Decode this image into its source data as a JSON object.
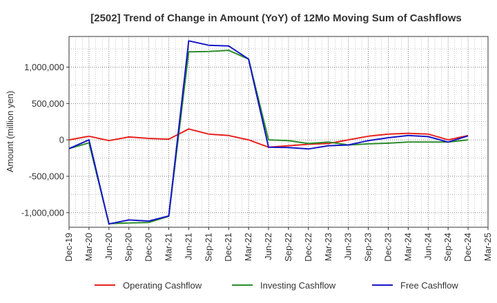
{
  "chart_data": {
    "type": "line",
    "title": "[2502]  Trend of Change in Amount (YoY) of 12Mo Moving Sum of Cashflows",
    "xlabel": "",
    "ylabel": "Amount (million yen)",
    "ylim": [
      -1200000,
      1420000
    ],
    "y_ticks": [
      -1000000,
      -500000,
      0,
      500000,
      1000000
    ],
    "y_tick_labels": [
      "-1,000,000",
      "-500,000",
      "0",
      "500,000",
      "1,000,000"
    ],
    "x_tick_labels": [
      "Dec-19",
      "Mar-20",
      "Jun-20",
      "Sep-20",
      "Dec-20",
      "Mar-21",
      "Jun-21",
      "Sep-21",
      "Dec-21",
      "Mar-22",
      "Jun-22",
      "Sep-22",
      "Dec-22",
      "Mar-23",
      "Jun-23",
      "Sep-23",
      "Dec-23",
      "Mar-24",
      "Jun-24",
      "Sep-24",
      "Dec-24",
      "Mar-25"
    ],
    "x": [
      "Dec-19",
      "Mar-20",
      "Jun-20",
      "Sep-20",
      "Dec-20",
      "Mar-21",
      "Jun-21",
      "Sep-21",
      "Dec-21",
      "Mar-22",
      "Jun-22",
      "Sep-22",
      "Dec-22",
      "Mar-23",
      "Jun-23",
      "Sep-23",
      "Dec-23",
      "Mar-24",
      "Jun-24",
      "Sep-24",
      "Dec-24"
    ],
    "grid": true,
    "legend_position": "bottom",
    "series": [
      {
        "name": "Operating Cashflow",
        "color": "#e8211c",
        "values": [
          0,
          50000,
          -10000,
          40000,
          20000,
          10000,
          150000,
          80000,
          60000,
          0,
          -100000,
          -80000,
          -60000,
          -50000,
          0,
          50000,
          80000,
          90000,
          80000,
          0,
          60000
        ]
      },
      {
        "name": "Investing Cashflow",
        "color": "#2a8c2a",
        "values": [
          -120000,
          -40000,
          -1150000,
          -1140000,
          -1135000,
          -1050000,
          1210000,
          1215000,
          1230000,
          1110000,
          0,
          -10000,
          -50000,
          -30000,
          -70000,
          -55000,
          -45000,
          -30000,
          -30000,
          -30000,
          0
        ]
      },
      {
        "name": "Free Cashflow",
        "color": "#1515c8",
        "values": [
          -120000,
          0,
          -1155000,
          -1100000,
          -1115000,
          -1045000,
          1360000,
          1300000,
          1290000,
          1110000,
          -100000,
          -105000,
          -125000,
          -80000,
          -70000,
          -10000,
          30000,
          60000,
          45000,
          -30000,
          55000
        ]
      }
    ]
  }
}
